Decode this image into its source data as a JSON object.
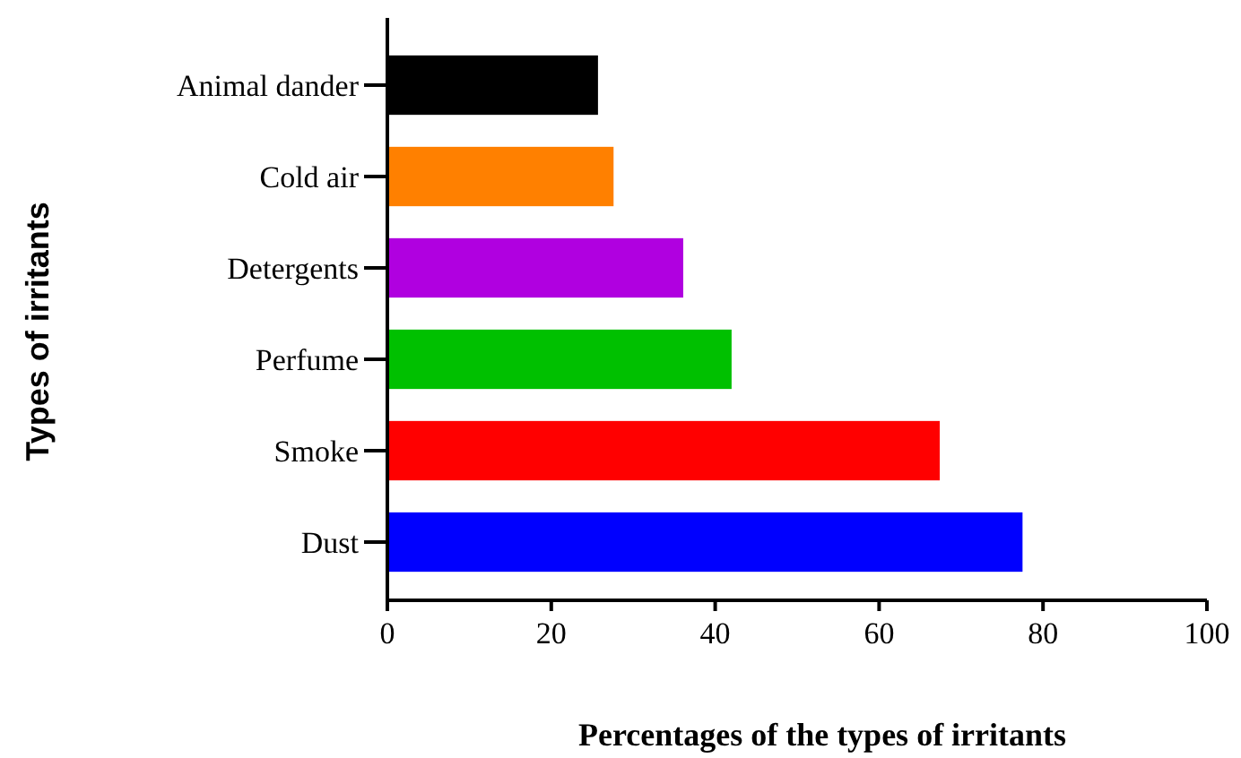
{
  "chart_data": {
    "type": "bar",
    "orientation": "horizontal",
    "xlabel": "Percentages of the types of irritants",
    "ylabel": "Types of irritants",
    "categories": [
      "Animal dander",
      "Cold air",
      "Detergents",
      "Perfume",
      "Smoke",
      "Dust"
    ],
    "values": [
      25.7,
      27.6,
      36.1,
      42.0,
      67.4,
      77.5
    ],
    "colors": [
      "#000000",
      "#ff8000",
      "#b000e0",
      "#00c000",
      "#ff0000",
      "#0000ff"
    ],
    "xlim": [
      0,
      100
    ],
    "xticks": [
      0,
      20,
      40,
      60,
      80,
      100
    ],
    "grid": false
  }
}
